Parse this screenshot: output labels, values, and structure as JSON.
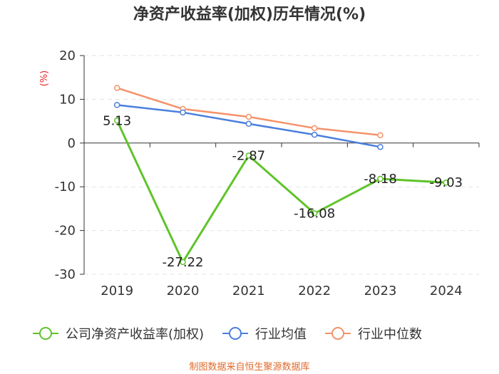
{
  "chart_data": {
    "type": "line",
    "title": "净资产收益率(加权)历年情况(%)",
    "ylabel": "(%)",
    "categories": [
      "2019",
      "2020",
      "2021",
      "2022",
      "2023",
      "2024"
    ],
    "ylim": [
      -30,
      20
    ],
    "yticks": [
      20,
      10,
      0,
      -10,
      -20,
      -30
    ],
    "grid": true,
    "legend_position": "bottom",
    "series": [
      {
        "name": "公司净资产收益率(加权)",
        "color": "#5fc42a",
        "values": [
          5.13,
          -27.22,
          -2.87,
          -16.08,
          -8.18,
          -9.03
        ],
        "labels": [
          "5.13",
          "-27.22",
          "-2.87",
          "-16.08",
          "-8.18",
          "-9.03"
        ]
      },
      {
        "name": "行业均值",
        "color": "#4a7fdc",
        "values": [
          8.7,
          7.0,
          4.4,
          1.9,
          -0.9,
          null
        ]
      },
      {
        "name": "行业中位数",
        "color": "#f5926a",
        "values": [
          12.6,
          7.8,
          6.0,
          3.4,
          1.8,
          null
        ]
      }
    ]
  },
  "source": "制图数据来自恒生聚源数据库"
}
